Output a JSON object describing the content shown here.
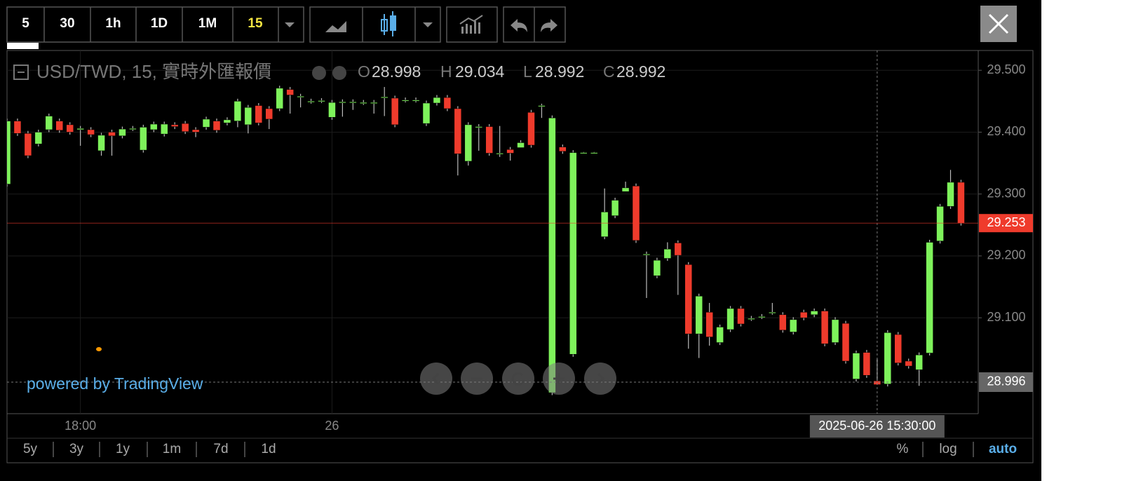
{
  "chart_data": {
    "type": "candlestick",
    "title": "USD/TWD, 15, 實時外匯報價",
    "categories": [
      null,
      null,
      null,
      null,
      null,
      null,
      null,
      "18:00",
      null,
      null,
      null,
      null,
      null,
      null,
      null,
      null,
      null,
      null,
      null,
      null,
      null,
      null,
      null,
      null,
      null,
      null,
      null,
      null,
      null,
      null,
      null,
      "26",
      null,
      null,
      null,
      null,
      null,
      null,
      null,
      null,
      null,
      null,
      null,
      null,
      null,
      null,
      null,
      null,
      null,
      null,
      null,
      null,
      null,
      null,
      null,
      null,
      null,
      null,
      null,
      null,
      null,
      null,
      null,
      null,
      null,
      null,
      null,
      null,
      null,
      null,
      null,
      null,
      null,
      null,
      null,
      null,
      null,
      null,
      null,
      null,
      null,
      null,
      null,
      "2025-06-26 15:30:00",
      null,
      null,
      null,
      null,
      null,
      null,
      null,
      null
    ],
    "open": [
      29.316,
      29.418,
      29.398,
      29.381,
      29.404,
      29.418,
      29.412,
      29.404,
      29.404,
      29.37,
      29.4,
      29.394,
      29.406,
      29.371,
      29.404,
      29.397,
      29.412,
      29.414,
      29.404,
      29.408,
      29.418,
      29.415,
      29.418,
      29.412,
      29.443,
      29.438,
      29.438,
      29.469,
      29.458,
      29.45,
      29.451,
      29.424,
      29.449,
      29.449,
      29.448,
      29.448,
      29.457,
      29.455,
      29.452,
      29.452,
      29.414,
      29.447,
      29.456,
      29.438,
      29.353,
      29.409,
      29.409,
      29.366,
      29.372,
      29.375,
      29.432,
      29.443,
      28.979,
      29.376,
      29.041,
      29.367,
      29.367,
      29.231,
      29.265,
      29.304,
      29.313,
      29.203,
      29.168,
      29.196,
      29.221,
      29.186,
      29.074,
      29.109,
      29.06,
      29.081,
      29.115,
      29.099,
      29.102,
      29.109,
      29.105,
      29.077,
      29.109,
      29.105,
      29.111,
      29.06,
      29.091,
      29.001,
      29.044,
      28.998,
      28.993,
      29.073,
      29.03,
      29.016,
      29.043,
      29.224,
      29.28,
      29.319
    ],
    "high": [
      29.422,
      29.422,
      29.402,
      29.404,
      29.43,
      29.422,
      29.416,
      29.41,
      29.408,
      29.399,
      29.404,
      29.409,
      29.41,
      29.412,
      29.417,
      29.417,
      29.416,
      29.418,
      29.408,
      29.425,
      29.422,
      29.424,
      29.454,
      29.444,
      29.447,
      29.442,
      29.475,
      29.473,
      29.462,
      29.454,
      29.455,
      29.452,
      29.453,
      29.453,
      29.452,
      29.452,
      29.473,
      29.459,
      29.456,
      29.456,
      29.451,
      29.46,
      29.46,
      29.442,
      29.416,
      29.413,
      29.413,
      29.41,
      29.376,
      29.387,
      29.436,
      29.446,
      29.427,
      29.38,
      29.371,
      29.368,
      29.368,
      29.309,
      29.294,
      29.32,
      29.317,
      29.207,
      29.197,
      29.222,
      29.225,
      29.19,
      29.139,
      29.124,
      29.089,
      29.119,
      29.119,
      29.103,
      29.106,
      29.124,
      29.109,
      29.101,
      29.113,
      29.115,
      29.115,
      29.101,
      29.095,
      29.047,
      29.048,
      29.034,
      29.08,
      29.077,
      29.034,
      29.044,
      29.226,
      29.284,
      29.339,
      29.323
    ],
    "low": [
      29.312,
      29.394,
      29.358,
      29.377,
      29.4,
      29.399,
      29.396,
      29.378,
      29.392,
      29.362,
      29.362,
      29.39,
      29.402,
      29.367,
      29.4,
      29.393,
      29.405,
      29.397,
      29.392,
      29.404,
      29.399,
      29.411,
      29.408,
      29.398,
      29.411,
      29.405,
      29.434,
      29.43,
      29.44,
      29.446,
      29.447,
      29.42,
      29.425,
      29.436,
      29.444,
      29.43,
      29.426,
      29.408,
      29.448,
      29.448,
      29.41,
      29.443,
      29.434,
      29.33,
      29.346,
      29.37,
      29.362,
      29.36,
      29.354,
      29.375,
      29.375,
      29.423,
      28.975,
      29.365,
      29.037,
      29.366,
      29.366,
      29.227,
      29.261,
      29.306,
      29.221,
      29.132,
      29.164,
      29.192,
      29.137,
      29.05,
      29.035,
      29.055,
      29.056,
      29.077,
      29.086,
      29.095,
      29.098,
      29.105,
      29.076,
      29.073,
      29.096,
      29.101,
      29.054,
      29.056,
      29.026,
      28.997,
      29.003,
      28.992,
      28.989,
      29.023,
      29.018,
      28.99,
      29.039,
      29.22,
      29.276,
      29.249
    ],
    "close": [
      29.418,
      29.398,
      29.362,
      29.4,
      29.426,
      29.403,
      29.4,
      29.406,
      29.396,
      29.395,
      29.394,
      29.405,
      29.406,
      29.408,
      29.413,
      29.413,
      29.409,
      29.401,
      29.4,
      29.421,
      29.403,
      29.42,
      29.45,
      29.44,
      29.415,
      29.421,
      29.471,
      29.46,
      29.458,
      29.45,
      29.451,
      29.448,
      29.449,
      29.449,
      29.448,
      29.448,
      29.457,
      29.412,
      29.452,
      29.452,
      29.447,
      29.456,
      29.438,
      29.365,
      29.412,
      29.409,
      29.366,
      29.366,
      29.366,
      29.383,
      29.379,
      29.443,
      29.423,
      29.369,
      29.367,
      29.367,
      29.367,
      29.271,
      29.29,
      29.31,
      29.225,
      29.203,
      29.193,
      29.211,
      29.201,
      29.074,
      29.135,
      29.069,
      29.085,
      29.115,
      29.09,
      29.099,
      29.102,
      29.109,
      29.08,
      29.097,
      29.1,
      29.111,
      29.058,
      29.097,
      29.03,
      29.043,
      29.007,
      28.992,
      29.076,
      29.027,
      29.022,
      29.04,
      29.222,
      29.28,
      29.319,
      29.253
    ],
    "up_color": "#7ef25b",
    "down_color": "#ef3b2c",
    "ylim": [
      28.945,
      29.532
    ],
    "yticks": [
      {
        "value": 29.5,
        "label": "29.500"
      },
      {
        "value": 29.4,
        "label": "29.400"
      },
      {
        "value": 29.3,
        "label": "29.300"
      },
      {
        "value": 29.2,
        "label": "29.200"
      },
      {
        "value": 29.1,
        "label": "29.100"
      }
    ],
    "grid": true,
    "crosshair_price": 28.996
  },
  "legend": {
    "open_label": "O",
    "high_label": "H",
    "low_label": "L",
    "close_label": "C"
  },
  "toolbar": {
    "intervals": [
      "5",
      "30",
      "1h",
      "1D",
      "1M"
    ],
    "active_interval": "15"
  },
  "footer": {
    "ranges": [
      "5y",
      "3y",
      "1y",
      "1m",
      "7d",
      "1d"
    ],
    "percent": "%",
    "log": "log",
    "auto": "auto"
  },
  "branding": "powered by TradingView"
}
